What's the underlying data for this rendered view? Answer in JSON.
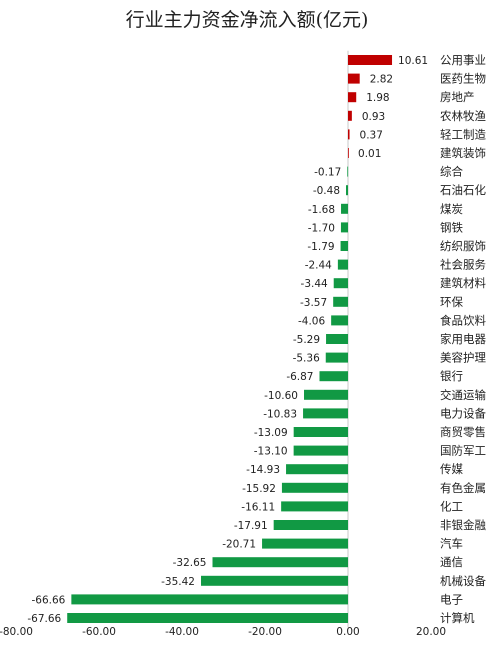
{
  "chart_data": {
    "type": "bar",
    "orientation": "horizontal",
    "title": "行业主力资金净流入额(亿元)",
    "categories": [
      "公用事业",
      "医药生物",
      "房地产",
      "农林牧渔",
      "轻工制造",
      "建筑装饰",
      "综合",
      "石油石化",
      "煤炭",
      "钢铁",
      "纺织服饰",
      "社会服务",
      "建筑材料",
      "环保",
      "食品饮料",
      "家用电器",
      "美容护理",
      "银行",
      "交通运输",
      "电力设备",
      "商贸零售",
      "国防军工",
      "传媒",
      "有色金属",
      "化工",
      "非银金融",
      "汽车",
      "通信",
      "机械设备",
      "电子",
      "计算机"
    ],
    "values": [
      10.61,
      2.82,
      1.98,
      0.93,
      0.37,
      0.01,
      -0.17,
      -0.48,
      -1.68,
      -1.7,
      -1.79,
      -2.44,
      -3.44,
      -3.57,
      -4.06,
      -5.29,
      -5.36,
      -6.87,
      -10.6,
      -10.83,
      -13.09,
      -13.1,
      -14.93,
      -15.92,
      -16.11,
      -17.91,
      -20.71,
      -32.65,
      -35.42,
      -66.66,
      -67.66
    ],
    "value_labels": [
      "10.61",
      "2.82",
      "1.98",
      "0.93",
      "0.37",
      "0.01",
      "-0.17",
      "-0.48",
      "-1.68",
      "-1.70",
      "-1.79",
      "-2.44",
      "-3.44",
      "-3.57",
      "-4.06",
      "-5.29",
      "-5.36",
      "-6.87",
      "-10.60",
      "-10.83",
      "-13.09",
      "-13.10",
      "-14.93",
      "-15.92",
      "-16.11",
      "-17.91",
      "-20.71",
      "-32.65",
      "-35.42",
      "-66.66",
      "-67.66"
    ],
    "xlim": [
      -80,
      20
    ],
    "xticks": [
      -80,
      -60,
      -40,
      -20,
      0,
      20
    ],
    "xtick_labels": [
      "-80.00",
      "-60.00",
      "-40.00",
      "-20.00",
      "0.00",
      "20.00"
    ],
    "grid": false,
    "legend": "none",
    "colors": {
      "positive": "#c00000",
      "negative": "#119944"
    }
  }
}
